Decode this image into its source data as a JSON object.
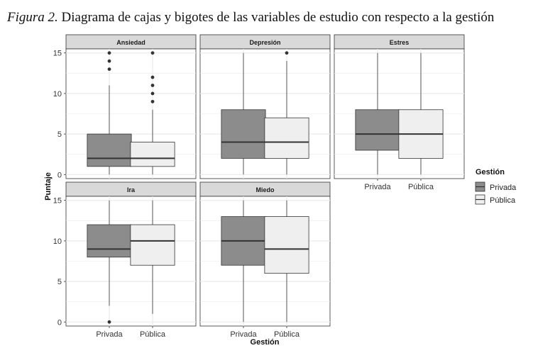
{
  "caption": {
    "label": "Figura 2.",
    "text": "Diagrama de cajas y bigotes de las variables de estudio con respecto a la gestión"
  },
  "colors": {
    "privada": "#8c8c8c",
    "publica": "#efefef",
    "strip": "#d9d9d9",
    "grid": "#ebebeb"
  },
  "chart_data": {
    "type": "boxplot",
    "xlabel": "Gestión",
    "ylabel": "Puntaje",
    "ylim": [
      -0.5,
      15.5
    ],
    "yticks": [
      0,
      5,
      10,
      15
    ],
    "categories": [
      "Privada",
      "Pública"
    ],
    "grid": true,
    "legend": {
      "title": "Gestión",
      "position": "right",
      "entries": [
        "Privada",
        "Pública"
      ]
    },
    "panels": [
      {
        "name": "Ansiedad",
        "boxes": [
          {
            "group": "Privada",
            "min": 0,
            "q1": 1,
            "median": 2,
            "q3": 5,
            "max": 11,
            "outliers": [
              13,
              14,
              15
            ]
          },
          {
            "group": "Pública",
            "min": 0,
            "q1": 1,
            "median": 2,
            "q3": 4,
            "max": 8,
            "outliers": [
              9,
              10,
              11,
              12,
              15
            ]
          }
        ]
      },
      {
        "name": "Depresión",
        "boxes": [
          {
            "group": "Privada",
            "min": 0,
            "q1": 2,
            "median": 4,
            "q3": 8,
            "max": 15,
            "outliers": []
          },
          {
            "group": "Pública",
            "min": 0,
            "q1": 2,
            "median": 4,
            "q3": 7,
            "max": 14,
            "outliers": [
              15
            ]
          }
        ]
      },
      {
        "name": "Estres",
        "boxes": [
          {
            "group": "Privada",
            "min": 0,
            "q1": 3,
            "median": 5,
            "q3": 8,
            "max": 15,
            "outliers": []
          },
          {
            "group": "Pública",
            "min": 0,
            "q1": 2,
            "median": 5,
            "q3": 8,
            "max": 15,
            "outliers": []
          }
        ]
      },
      {
        "name": "Ira",
        "boxes": [
          {
            "group": "Privada",
            "min": 2,
            "q1": 8,
            "median": 9,
            "q3": 12,
            "max": 15,
            "outliers": [
              0
            ]
          },
          {
            "group": "Pública",
            "min": 1,
            "q1": 7,
            "median": 10,
            "q3": 12,
            "max": 15,
            "outliers": []
          }
        ]
      },
      {
        "name": "Miedo",
        "boxes": [
          {
            "group": "Privada",
            "min": 0,
            "q1": 7,
            "median": 10,
            "q3": 13,
            "max": 15,
            "outliers": []
          },
          {
            "group": "Pública",
            "min": 0,
            "q1": 6,
            "median": 9,
            "q3": 13,
            "max": 15,
            "outliers": []
          }
        ]
      }
    ]
  }
}
